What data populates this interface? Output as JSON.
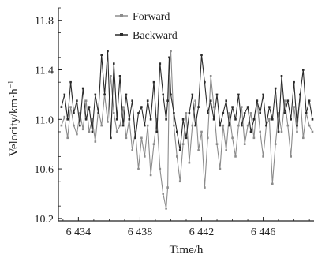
{
  "chart_data": {
    "type": "line",
    "xlabel": "Time/h",
    "ylabel_main": "Velocity/km·h",
    "ylabel_sup": "−1",
    "xlim": [
      6432.7,
      6449.3
    ],
    "ylim": [
      10.18,
      11.9
    ],
    "xticks": [
      6434,
      6438,
      6442,
      6446
    ],
    "xtick_labels": [
      "6 434",
      "6 438",
      "6 442",
      "6 446"
    ],
    "yticks": [
      10.2,
      10.6,
      11.0,
      11.4,
      11.8
    ],
    "ytick_labels": [
      "10.2",
      "10.6",
      "11.0",
      "11.4",
      "11.8"
    ],
    "grid": false,
    "legend_position": "top-center",
    "series": [
      {
        "name": "Forward",
        "color": "#8c8c8c",
        "x": [
          6432.9,
          6433.1,
          6433.3,
          6433.5,
          6433.7,
          6433.9,
          6434.1,
          6434.3,
          6434.5,
          6434.7,
          6434.9,
          6435.1,
          6435.3,
          6435.5,
          6435.7,
          6435.9,
          6436.1,
          6436.3,
          6436.5,
          6436.7,
          6436.9,
          6437.1,
          6437.3,
          6437.5,
          6437.7,
          6437.9,
          6438.1,
          6438.3,
          6438.5,
          6438.7,
          6438.9,
          6439.1,
          6439.3,
          6439.5,
          6439.7,
          6439.8,
          6439.9,
          6440.0,
          6440.2,
          6440.4,
          6440.6,
          6440.8,
          6441.0,
          6441.2,
          6441.4,
          6441.6,
          6441.8,
          6442.0,
          6442.2,
          6442.4,
          6442.6,
          6442.8,
          6443.0,
          6443.2,
          6443.4,
          6443.6,
          6443.8,
          6444.0,
          6444.2,
          6444.4,
          6444.6,
          6444.8,
          6445.0,
          6445.2,
          6445.4,
          6445.6,
          6445.8,
          6446.0,
          6446.2,
          6446.4,
          6446.6,
          6446.8,
          6447.0,
          6447.2,
          6447.4,
          6447.6,
          6447.8,
          6448.0,
          6448.2,
          6448.4,
          6448.6,
          6448.8,
          6449.0,
          6449.2
        ],
        "y": [
          10.95,
          11.02,
          10.85,
          11.1,
          10.95,
          10.88,
          11.05,
          10.92,
          11.15,
          10.9,
          11.0,
          10.82,
          11.08,
          10.95,
          11.2,
          10.98,
          11.35,
          11.05,
          10.9,
          10.95,
          11.1,
          10.85,
          11.0,
          10.75,
          10.9,
          10.6,
          10.85,
          10.7,
          10.95,
          10.55,
          10.8,
          11.0,
          10.6,
          10.4,
          10.28,
          10.45,
          11.35,
          11.55,
          10.95,
          10.7,
          10.5,
          10.8,
          11.05,
          10.65,
          10.95,
          11.15,
          10.75,
          10.9,
          10.45,
          10.85,
          11.35,
          11.1,
          10.8,
          10.6,
          10.95,
          10.75,
          11.05,
          10.85,
          10.7,
          10.95,
          11.1,
          10.8,
          10.95,
          11.05,
          10.85,
          11.15,
          10.9,
          10.7,
          10.95,
          11.0,
          10.48,
          10.8,
          11.05,
          10.9,
          11.15,
          10.95,
          10.7,
          11.1,
          10.9,
          11.2,
          10.85,
          11.05,
          10.95,
          10.9
        ]
      },
      {
        "name": "Backward",
        "color": "#2b2b2b",
        "x": [
          6432.9,
          6433.1,
          6433.3,
          6433.5,
          6433.7,
          6433.9,
          6434.1,
          6434.3,
          6434.5,
          6434.7,
          6434.9,
          6435.1,
          6435.3,
          6435.5,
          6435.7,
          6435.9,
          6436.1,
          6436.3,
          6436.5,
          6436.7,
          6436.9,
          6437.1,
          6437.3,
          6437.5,
          6437.7,
          6437.9,
          6438.1,
          6438.3,
          6438.5,
          6438.7,
          6438.9,
          6439.1,
          6439.3,
          6439.5,
          6439.7,
          6439.8,
          6439.9,
          6440.0,
          6440.2,
          6440.4,
          6440.6,
          6440.8,
          6441.0,
          6441.2,
          6441.4,
          6441.6,
          6441.8,
          6442.0,
          6442.2,
          6442.4,
          6442.6,
          6442.8,
          6443.0,
          6443.2,
          6443.4,
          6443.6,
          6443.8,
          6444.0,
          6444.2,
          6444.4,
          6444.6,
          6444.8,
          6445.0,
          6445.2,
          6445.4,
          6445.6,
          6445.8,
          6446.0,
          6446.2,
          6446.4,
          6446.6,
          6446.8,
          6447.0,
          6447.2,
          6447.4,
          6447.6,
          6447.8,
          6448.0,
          6448.2,
          6448.4,
          6448.6,
          6448.8,
          6449.0,
          6449.2
        ],
        "y": [
          11.1,
          11.2,
          11.0,
          11.3,
          11.05,
          11.15,
          10.95,
          11.25,
          11.0,
          11.1,
          10.9,
          11.2,
          11.05,
          11.52,
          11.2,
          11.55,
          10.85,
          11.45,
          11.0,
          11.35,
          10.95,
          11.2,
          11.0,
          11.15,
          10.85,
          11.05,
          11.1,
          10.95,
          11.15,
          11.0,
          11.3,
          10.9,
          11.45,
          11.2,
          11.0,
          11.15,
          11.5,
          11.2,
          11.05,
          10.9,
          10.75,
          11.0,
          10.85,
          11.05,
          11.2,
          10.95,
          11.1,
          11.52,
          11.3,
          11.05,
          11.15,
          11.0,
          11.2,
          10.95,
          11.05,
          11.15,
          10.95,
          11.1,
          11.0,
          11.2,
          10.95,
          11.05,
          11.1,
          10.9,
          11.0,
          11.15,
          11.05,
          11.2,
          10.95,
          11.1,
          11.0,
          11.25,
          10.9,
          11.35,
          11.05,
          11.15,
          11.0,
          11.3,
          10.95,
          11.2,
          11.4,
          11.05,
          11.15,
          11.0
        ]
      }
    ]
  }
}
